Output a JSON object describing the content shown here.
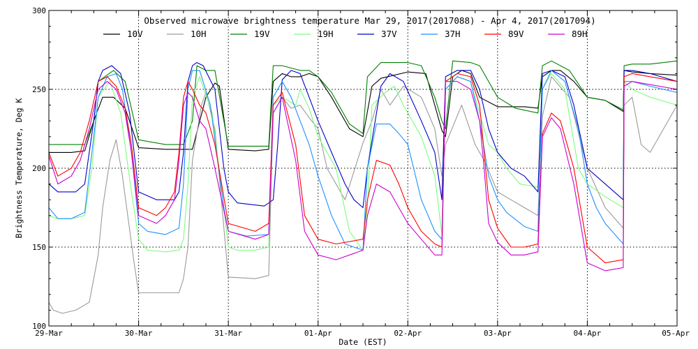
{
  "chart_data": {
    "type": "line",
    "title": "Observed microwave brightness temperature Mar 29, 2017(2017088) - Apr  4, 2017(2017094)",
    "xlabel": "Date (EST)",
    "ylabel": "Brightness Temperature, Deg K",
    "xlim": [
      0,
      7
    ],
    "ylim": [
      100,
      300
    ],
    "grid": true,
    "legend_position": "top",
    "x_tick_values": [
      0,
      1,
      2,
      3,
      4,
      5,
      6,
      7
    ],
    "x_tick_labels": [
      "29-Mar",
      "30-Mar",
      "31-Mar",
      "01-Apr",
      "02-Apr",
      "03-Apr",
      "04-Apr",
      "05-Apr"
    ],
    "y_ticks": [
      100,
      150,
      200,
      250,
      300
    ],
    "x_unit": "days since 29-Mar 00:00 EST",
    "series": [
      {
        "name": "10V",
        "color": "#000000",
        "x": [
          0,
          0.25,
          0.4,
          0.5,
          0.6,
          0.72,
          0.85,
          1.0,
          1.3,
          1.5,
          1.6,
          1.75,
          1.85,
          1.9,
          2.0,
          2.3,
          2.45,
          2.5,
          2.6,
          2.7,
          2.8,
          2.9,
          3.0,
          3.15,
          3.35,
          3.5,
          3.6,
          3.7,
          4.0,
          4.2,
          4.38,
          4.42,
          4.5,
          4.6,
          4.7,
          4.8,
          5.0,
          5.15,
          5.3,
          5.45,
          5.5,
          5.6,
          5.7,
          5.85,
          6.0,
          6.2,
          6.4,
          6.41,
          6.5,
          6.7,
          7.0
        ],
        "values": [
          210,
          210,
          211,
          230,
          245,
          245,
          238,
          213,
          212,
          212,
          212,
          245,
          254,
          252,
          212,
          211,
          212,
          255,
          260,
          258,
          258,
          260,
          258,
          245,
          225,
          220,
          252,
          257,
          261,
          260,
          224,
          220,
          258,
          262,
          260,
          245,
          239,
          239,
          239,
          238,
          258,
          262,
          262,
          255,
          245,
          243,
          236,
          262,
          261,
          260,
          259
        ]
      },
      {
        "name": "10H",
        "color": "#9a9a9a",
        "x": [
          0,
          0.05,
          0.15,
          0.3,
          0.45,
          0.55,
          0.6,
          0.68,
          0.75,
          0.82,
          0.95,
          1.0,
          1.3,
          1.45,
          1.5,
          1.55,
          1.6,
          1.7,
          1.75,
          1.85,
          2.0,
          2.3,
          2.45,
          2.5,
          2.6,
          2.7,
          2.8,
          2.9,
          3.0,
          3.1,
          3.3,
          3.5,
          3.6,
          3.7,
          3.8,
          3.95,
          4.15,
          4.3,
          4.38,
          4.42,
          4.6,
          4.75,
          4.85,
          5.0,
          5.15,
          5.3,
          5.45,
          5.5,
          5.6,
          5.8,
          6.0,
          6.2,
          6.4,
          6.41,
          6.5,
          6.6,
          6.7,
          6.85,
          7.0
        ],
        "values": [
          115,
          110,
          108,
          110,
          115,
          145,
          175,
          205,
          218,
          195,
          140,
          121,
          121,
          121,
          130,
          150,
          205,
          240,
          248,
          225,
          131,
          130,
          132,
          235,
          245,
          238,
          240,
          232,
          225,
          200,
          180,
          216,
          230,
          250,
          240,
          252,
          245,
          225,
          195,
          215,
          240,
          215,
          205,
          185,
          180,
          175,
          170,
          233,
          258,
          245,
          200,
          175,
          162,
          240,
          245,
          215,
          210,
          225,
          240
        ]
      },
      {
        "name": "19V",
        "color": "#008000",
        "x": [
          0,
          0.4,
          0.5,
          0.55,
          0.72,
          0.85,
          1.0,
          1.3,
          1.5,
          1.6,
          1.65,
          1.75,
          1.85,
          2.0,
          2.3,
          2.45,
          2.5,
          2.6,
          2.8,
          2.9,
          3.0,
          3.15,
          3.35,
          3.5,
          3.55,
          3.7,
          4.0,
          4.15,
          4.3,
          4.38,
          4.42,
          4.5,
          4.7,
          4.8,
          5.0,
          5.2,
          5.45,
          5.5,
          5.6,
          5.8,
          6.0,
          6.2,
          6.4,
          6.41,
          6.5,
          6.7,
          7.0
        ],
        "values": [
          215,
          215,
          230,
          255,
          262,
          255,
          218,
          215,
          215,
          230,
          265,
          262,
          262,
          214,
          214,
          214,
          265,
          265,
          262,
          262,
          258,
          248,
          228,
          222,
          258,
          267,
          267,
          265,
          245,
          230,
          225,
          268,
          267,
          265,
          245,
          238,
          235,
          265,
          268,
          262,
          245,
          243,
          237,
          265,
          266,
          266,
          268
        ]
      },
      {
        "name": "19H",
        "color": "#7cfc7c",
        "x": [
          0,
          0.1,
          0.25,
          0.4,
          0.48,
          0.55,
          0.68,
          0.8,
          0.92,
          1.0,
          1.1,
          1.3,
          1.45,
          1.5,
          1.55,
          1.6,
          1.68,
          1.82,
          1.95,
          2.0,
          2.1,
          2.3,
          2.45,
          2.5,
          2.6,
          2.75,
          2.8,
          2.9,
          3.0,
          3.2,
          3.35,
          3.5,
          3.55,
          3.6,
          3.75,
          3.85,
          3.95,
          4.15,
          4.3,
          4.38,
          4.42,
          4.55,
          4.7,
          4.8,
          4.9,
          5.0,
          5.1,
          5.25,
          5.45,
          5.5,
          5.6,
          5.75,
          5.9,
          6.0,
          6.2,
          6.4,
          6.41,
          6.5,
          6.7,
          7.0
        ],
        "values": [
          170,
          168,
          168,
          170,
          200,
          245,
          255,
          235,
          185,
          155,
          148,
          147,
          148,
          155,
          190,
          245,
          258,
          235,
          175,
          150,
          148,
          148,
          150,
          240,
          245,
          240,
          250,
          238,
          220,
          200,
          160,
          148,
          175,
          240,
          248,
          252,
          240,
          220,
          195,
          158,
          250,
          258,
          255,
          235,
          215,
          210,
          200,
          190,
          188,
          250,
          260,
          250,
          200,
          190,
          182,
          175,
          255,
          250,
          245,
          240
        ]
      },
      {
        "name": "37V",
        "color": "#0000c8",
        "x": [
          0,
          0.1,
          0.3,
          0.4,
          0.5,
          0.55,
          0.6,
          0.7,
          0.8,
          0.9,
          1.0,
          1.2,
          1.4,
          1.45,
          1.5,
          1.55,
          1.6,
          1.65,
          1.72,
          1.85,
          1.95,
          2.0,
          2.1,
          2.4,
          2.5,
          2.55,
          2.6,
          2.7,
          2.8,
          2.9,
          3.0,
          3.15,
          3.3,
          3.4,
          3.5,
          3.55,
          3.7,
          3.8,
          3.95,
          4.15,
          4.3,
          4.38,
          4.42,
          4.55,
          4.7,
          4.8,
          4.9,
          5.0,
          5.15,
          5.3,
          5.45,
          5.5,
          5.6,
          5.75,
          5.85,
          6.0,
          6.2,
          6.4,
          6.41,
          6.5,
          6.7,
          7.0
        ],
        "values": [
          190,
          185,
          185,
          190,
          230,
          255,
          262,
          265,
          260,
          235,
          185,
          180,
          180,
          185,
          210,
          255,
          265,
          267,
          265,
          250,
          200,
          185,
          178,
          176,
          180,
          215,
          256,
          262,
          260,
          245,
          230,
          210,
          190,
          180,
          175,
          200,
          252,
          260,
          255,
          230,
          210,
          180,
          258,
          262,
          262,
          250,
          225,
          210,
          200,
          195,
          185,
          260,
          262,
          258,
          240,
          200,
          190,
          180,
          262,
          262,
          260,
          255
        ]
      },
      {
        "name": "37H",
        "color": "#1e90ff",
        "x": [
          0,
          0.1,
          0.25,
          0.4,
          0.48,
          0.55,
          0.65,
          0.75,
          0.82,
          0.92,
          1.0,
          1.1,
          1.3,
          1.45,
          1.5,
          1.55,
          1.6,
          1.68,
          1.8,
          1.95,
          2.0,
          2.2,
          2.45,
          2.5,
          2.6,
          2.7,
          2.8,
          2.9,
          3.0,
          3.15,
          3.3,
          3.5,
          3.55,
          3.65,
          3.8,
          3.9,
          4.0,
          4.15,
          4.3,
          4.38,
          4.42,
          4.55,
          4.7,
          4.8,
          4.9,
          5.0,
          5.1,
          5.3,
          5.45,
          5.5,
          5.6,
          5.75,
          5.9,
          6.0,
          6.1,
          6.2,
          6.4,
          6.41,
          6.5,
          6.7,
          7.0
        ],
        "values": [
          175,
          168,
          168,
          172,
          210,
          245,
          258,
          260,
          250,
          210,
          165,
          160,
          158,
          162,
          190,
          250,
          262,
          262,
          240,
          175,
          160,
          157,
          158,
          245,
          255,
          245,
          230,
          215,
          195,
          170,
          152,
          148,
          200,
          228,
          228,
          222,
          215,
          180,
          160,
          155,
          250,
          258,
          255,
          230,
          195,
          180,
          172,
          163,
          160,
          250,
          262,
          255,
          225,
          190,
          175,
          165,
          152,
          255,
          255,
          252,
          248
        ]
      },
      {
        "name": "89V",
        "color": "#ff0000",
        "x": [
          0,
          0.1,
          0.25,
          0.35,
          0.45,
          0.55,
          0.65,
          0.75,
          0.85,
          0.92,
          1.0,
          1.2,
          1.3,
          1.4,
          1.45,
          1.5,
          1.55,
          1.6,
          1.68,
          1.75,
          1.85,
          2.0,
          2.3,
          2.45,
          2.5,
          2.6,
          2.75,
          2.85,
          3.0,
          3.2,
          3.5,
          3.55,
          3.65,
          3.8,
          3.9,
          4.0,
          4.15,
          4.3,
          4.38,
          4.42,
          4.55,
          4.7,
          4.8,
          4.85,
          4.9,
          5.0,
          5.15,
          5.3,
          5.45,
          5.5,
          5.6,
          5.7,
          5.85,
          6.0,
          6.2,
          6.4,
          6.41,
          6.5,
          6.7,
          7.0
        ],
        "values": [
          210,
          195,
          200,
          210,
          230,
          255,
          258,
          252,
          238,
          215,
          175,
          170,
          175,
          185,
          210,
          245,
          255,
          250,
          240,
          235,
          215,
          165,
          160,
          165,
          240,
          248,
          215,
          170,
          155,
          152,
          155,
          180,
          205,
          202,
          190,
          175,
          160,
          152,
          150,
          255,
          260,
          258,
          240,
          210,
          180,
          162,
          150,
          150,
          152,
          222,
          235,
          230,
          200,
          150,
          140,
          142,
          258,
          260,
          258,
          255
        ]
      },
      {
        "name": "89H",
        "color": "#cc00cc",
        "x": [
          0,
          0.1,
          0.25,
          0.35,
          0.45,
          0.55,
          0.65,
          0.75,
          0.85,
          0.92,
          1.0,
          1.2,
          1.3,
          1.4,
          1.45,
          1.5,
          1.55,
          1.6,
          1.68,
          1.75,
          1.85,
          2.0,
          2.3,
          2.45,
          2.5,
          2.6,
          2.75,
          2.85,
          3.0,
          3.2,
          3.5,
          3.55,
          3.65,
          3.8,
          3.9,
          4.0,
          4.15,
          4.3,
          4.38,
          4.42,
          4.55,
          4.7,
          4.8,
          4.85,
          4.9,
          5.0,
          5.15,
          5.3,
          5.45,
          5.5,
          5.6,
          5.7,
          5.85,
          6.0,
          6.2,
          6.4,
          6.41,
          6.5,
          6.7,
          7.0
        ],
        "values": [
          208,
          190,
          195,
          205,
          225,
          250,
          255,
          250,
          235,
          210,
          170,
          165,
          170,
          180,
          205,
          240,
          248,
          245,
          230,
          225,
          200,
          160,
          155,
          158,
          235,
          245,
          205,
          160,
          145,
          142,
          148,
          170,
          190,
          185,
          175,
          165,
          155,
          145,
          145,
          255,
          255,
          250,
          230,
          200,
          165,
          153,
          145,
          145,
          147,
          220,
          232,
          225,
          190,
          140,
          135,
          137,
          252,
          255,
          253,
          250
        ]
      }
    ]
  }
}
